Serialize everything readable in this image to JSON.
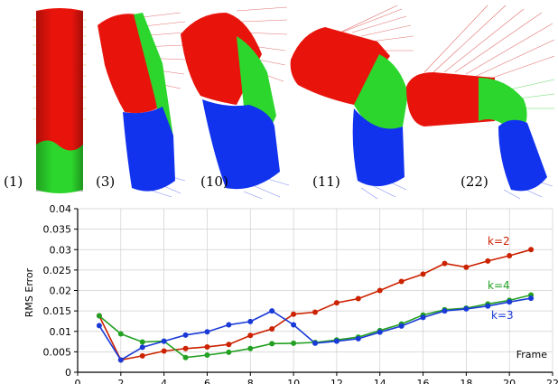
{
  "frames": {
    "labels": [
      "(1)",
      "(3)",
      "(10)",
      "(11)",
      "(22)"
    ],
    "colors": {
      "red": "#e8140c",
      "green": "#2cd62c",
      "blue": "#1133ee",
      "ray_red": "#d84040",
      "ray_blue": "#5566ee",
      "ray_green": "#33cc33"
    }
  },
  "chart_data": {
    "type": "line",
    "title": "",
    "xlabel": "Frame",
    "ylabel": "RMS Error",
    "xlim": [
      0,
      22
    ],
    "ylim": [
      0,
      0.04
    ],
    "x_ticks": [
      0,
      2,
      4,
      6,
      8,
      10,
      12,
      14,
      16,
      18,
      20,
      22
    ],
    "x_tick_labels": [
      "0",
      "2",
      "4",
      "6",
      "8",
      "10",
      "12",
      "14",
      "16",
      "18",
      "20",
      "22"
    ],
    "y_ticks": [
      0,
      0.005,
      0.01,
      0.015,
      0.02,
      0.025,
      0.03,
      0.035,
      0.04
    ],
    "y_tick_labels": [
      "0",
      "0.005",
      "0.01",
      "0.015",
      "0.02",
      "0.025",
      "0.03",
      "0.035",
      "0.04"
    ],
    "grid": true,
    "x": [
      1,
      2,
      3,
      4,
      5,
      6,
      7,
      8,
      9,
      10,
      11,
      12,
      13,
      14,
      15,
      16,
      17,
      18,
      19,
      20,
      21
    ],
    "series": [
      {
        "name": "k=2",
        "color": "#cc2200",
        "values": [
          0.0138,
          0.003,
          0.004,
          0.0052,
          0.0058,
          0.0062,
          0.0068,
          0.009,
          0.0106,
          0.0142,
          0.0147,
          0.017,
          0.018,
          0.02,
          0.0222,
          0.024,
          0.0266,
          0.0257,
          0.0272,
          0.0285,
          0.03
        ]
      },
      {
        "name": "k=4",
        "color": "#22a022",
        "values": [
          0.0138,
          0.0094,
          0.0074,
          0.0076,
          0.0036,
          0.0042,
          0.0049,
          0.0058,
          0.007,
          0.0071,
          0.0073,
          0.0079,
          0.0086,
          0.0102,
          0.0118,
          0.014,
          0.0153,
          0.0157,
          0.0167,
          0.0176,
          0.0189
        ]
      },
      {
        "name": "k=3",
        "color": "#1a3ad8",
        "values": [
          0.0114,
          0.003,
          0.0061,
          0.0076,
          0.0091,
          0.0099,
          0.0116,
          0.0124,
          0.015,
          0.0116,
          0.0071,
          0.0076,
          0.0082,
          0.0098,
          0.0113,
          0.0134,
          0.015,
          0.0155,
          0.0162,
          0.0172,
          0.0181
        ]
      }
    ]
  }
}
